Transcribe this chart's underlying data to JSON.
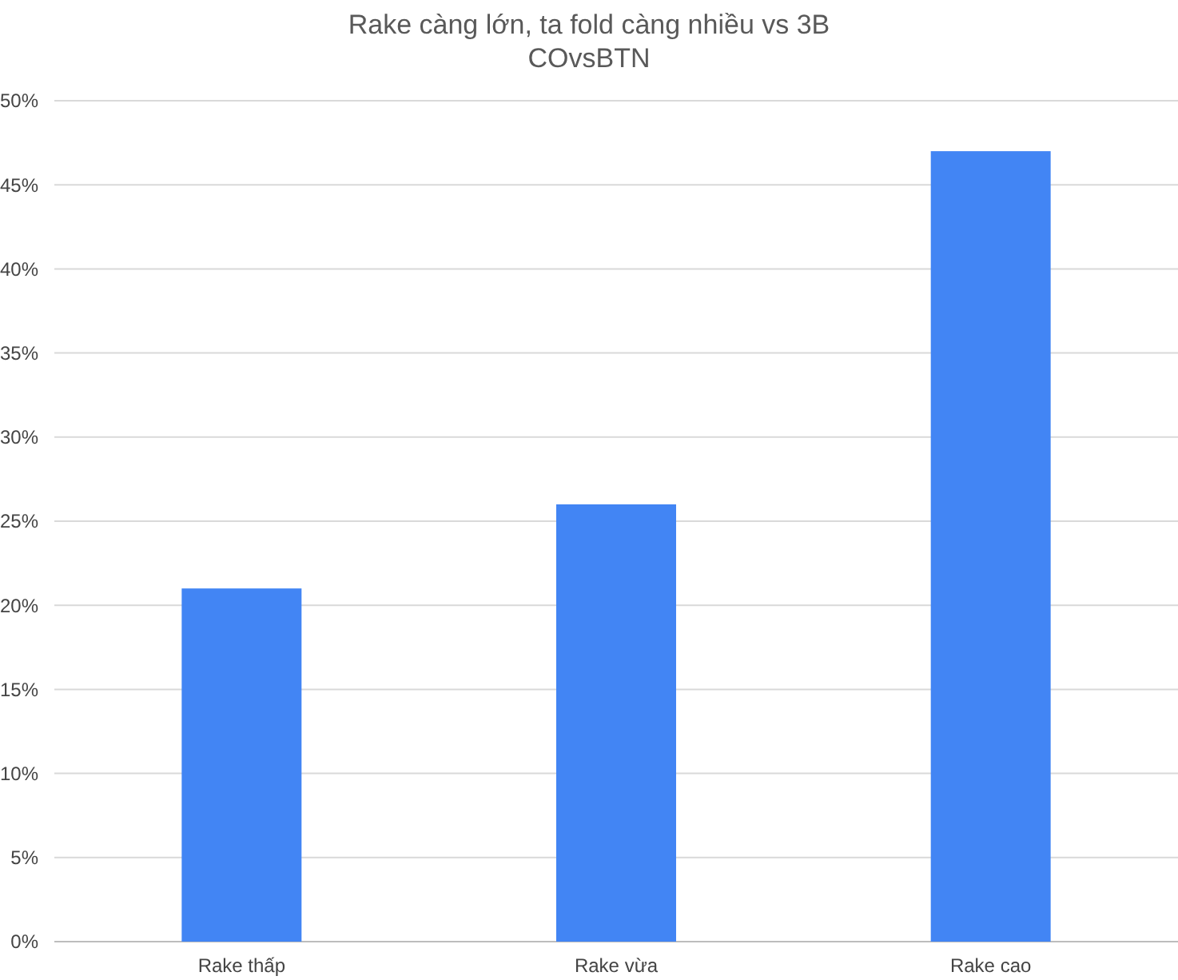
{
  "chart_data": {
    "type": "bar",
    "title": "Rake càng lớn, ta fold càng nhiều vs 3B",
    "subtitle": "COvsBTN",
    "categories": [
      "Rake thấp",
      "Rake vừa",
      "Rake cao"
    ],
    "values": [
      21,
      26,
      47
    ],
    "color": "#4285f4",
    "ylim": [
      0,
      50
    ],
    "yticks": [
      {
        "value": 0,
        "label": "0%"
      },
      {
        "value": 5,
        "label": "5%"
      },
      {
        "value": 10,
        "label": "10%"
      },
      {
        "value": 15,
        "label": "15%"
      },
      {
        "value": 20,
        "label": "20%"
      },
      {
        "value": 25,
        "label": "25%"
      },
      {
        "value": 30,
        "label": "30%"
      },
      {
        "value": 35,
        "label": "35%"
      },
      {
        "value": 40,
        "label": "40%"
      },
      {
        "value": 45,
        "label": "45%"
      },
      {
        "value": 50,
        "label": "50%"
      }
    ],
    "grid": true
  }
}
